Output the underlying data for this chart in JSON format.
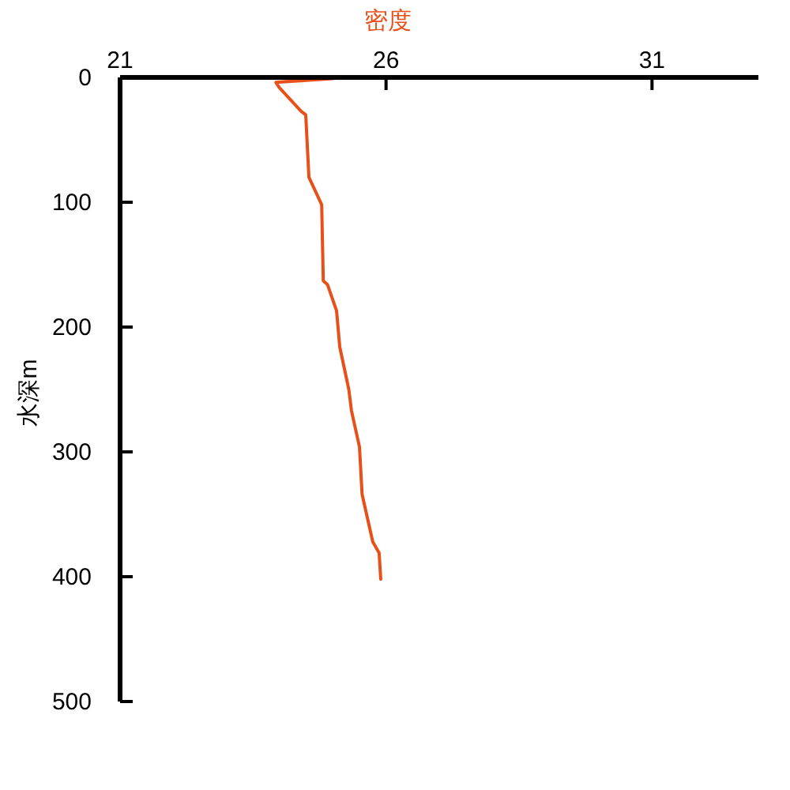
{
  "chart_data": {
    "type": "line",
    "xlabel": "密度",
    "ylabel": "水深m",
    "xlim": [
      21,
      33
    ],
    "ylim": [
      500,
      0
    ],
    "xticks": [
      21,
      26,
      31
    ],
    "yticks": [
      0,
      100,
      200,
      300,
      400,
      500
    ],
    "series": [
      {
        "color": "#e8501a",
        "x": [
          21.72,
          25.0,
          23.93,
          23.99,
          24.4,
          24.49,
          24.55,
          24.79,
          24.82,
          24.9,
          25.07,
          25.13,
          25.3,
          25.35,
          25.5,
          25.55,
          25.75,
          25.87,
          25.9
        ],
        "values": [
          0,
          1,
          4,
          8,
          27,
          30,
          80,
          102,
          163,
          166,
          187,
          216,
          250,
          267,
          296,
          334,
          372,
          381,
          402
        ]
      }
    ]
  }
}
